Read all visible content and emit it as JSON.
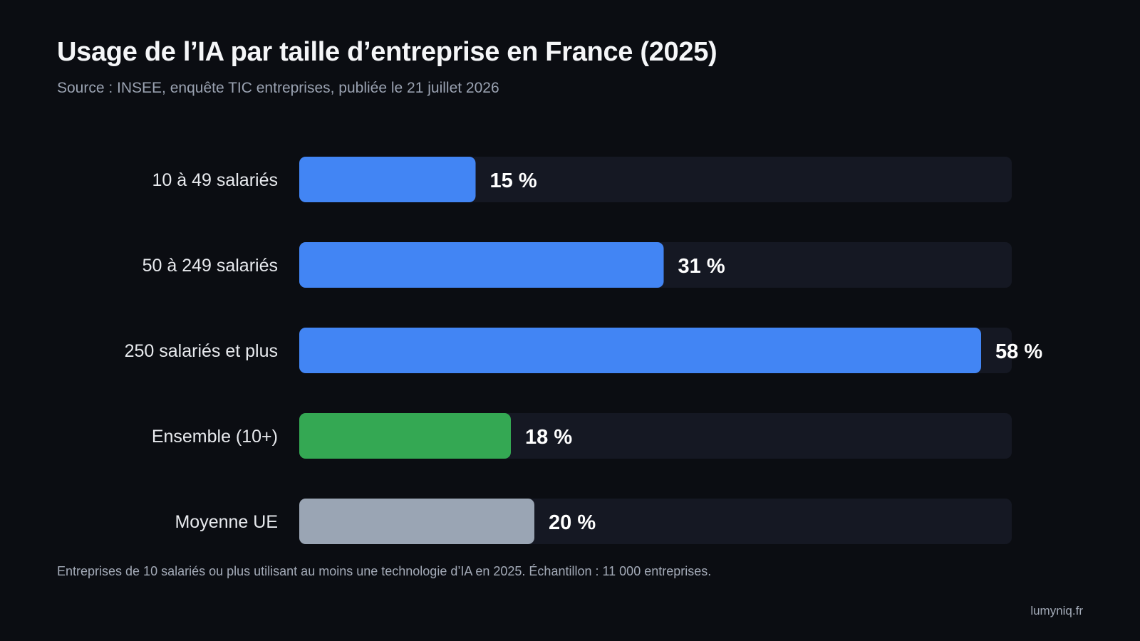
{
  "header": {
    "title": "Usage de l’IA par taille d’entreprise en France (2025)",
    "subtitle": "Source : INSEE, enquête TIC entreprises, publiée le 21 juillet 2026"
  },
  "footer": {
    "note": "Entreprises de 10 salariés ou plus utilisant au moins une technologie d’IA en 2025. Échantillon : 11 000 entreprises.",
    "credit": "lumyniq.fr"
  },
  "colors": {
    "background": "#0b0d12",
    "track": "#151823",
    "label": "#e8eaee",
    "value": "#ffffff"
  },
  "chart_data": {
    "type": "bar",
    "orientation": "horizontal",
    "categories": [
      "10 à 49 salariés",
      "50 à 249 salariés",
      "250 salariés et plus",
      "Ensemble (10+)",
      "Moyenne UE"
    ],
    "values": [
      15,
      31,
      58,
      18,
      20
    ],
    "value_labels": [
      "15 %",
      "31 %",
      "58 %",
      "18 %",
      "20 %"
    ],
    "colors": [
      "#4285f4",
      "#4285f4",
      "#4285f4",
      "#34a853",
      "#9aa5b4"
    ],
    "xlim": [
      0,
      60
    ],
    "grid": false,
    "title": "Usage de l’IA par taille d’entreprise en France (2025)",
    "xlabel": "",
    "ylabel": ""
  }
}
